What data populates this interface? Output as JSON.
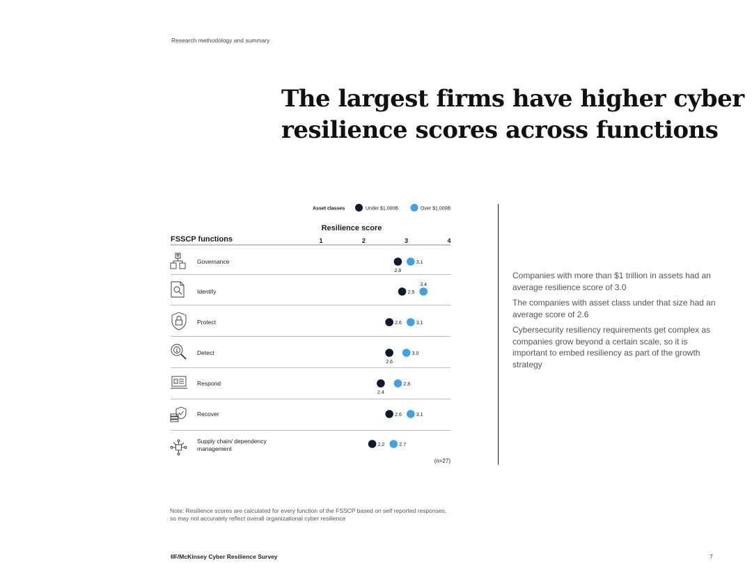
{
  "header": {
    "section_label": "Research methodology and summary"
  },
  "title": {
    "line1": "The largest firms have higher cyber",
    "line2": "resilience scores across functions"
  },
  "colors": {
    "under": "#0f1b2d",
    "over": "#3fa2e3",
    "rule": "#bdbdbd",
    "text": "#1a1a1a"
  },
  "chart_data": {
    "type": "scatter",
    "title": "Resilience score",
    "row_header": "FSSCP functions",
    "xlim": [
      1,
      4
    ],
    "x_ticks": [
      "1",
      "2",
      "3",
      "4"
    ],
    "legend": {
      "label": "Asset classes",
      "placement": "top"
    },
    "series": [
      {
        "name": "Under $1,000B",
        "color": "#0f1b2d",
        "values": [
          2.8,
          2.9,
          2.6,
          2.6,
          2.4,
          2.6,
          2.2
        ]
      },
      {
        "name": "Over $1,000B",
        "color": "#3fa2e3",
        "values": [
          3.1,
          3.4,
          3.1,
          3.0,
          2.8,
          3.1,
          2.7
        ]
      }
    ],
    "rows": [
      {
        "name": "Governance",
        "icon": "org-chart-icon",
        "labels": {
          "under": "2.8",
          "over": "3.1"
        }
      },
      {
        "name": "Identify",
        "icon": "document-search-icon",
        "labels": {
          "under": "2.9",
          "over": "3.4"
        }
      },
      {
        "name": "Protect",
        "icon": "shield-lock-icon",
        "labels": {
          "under": "2.6",
          "over": "3.1"
        }
      },
      {
        "name": "Detect",
        "icon": "magnifier-alert-icon",
        "labels": {
          "under": "2.6",
          "over": "3.0"
        }
      },
      {
        "name": "Respond",
        "icon": "laptop-checklist-icon",
        "labels": {
          "under": "2.4",
          "over": "2.8"
        }
      },
      {
        "name": "Recover",
        "icon": "database-shield-icon",
        "labels": {
          "under": "2.6",
          "over": "3.1"
        }
      },
      {
        "name": "Supply chain/ dependency management",
        "name_lines": [
          "Supply chain/ dependency",
          "management"
        ],
        "icon": "network-node-icon",
        "labels": {
          "under": "2.2",
          "over": "2.7"
        }
      }
    ],
    "sample_note": "(n=27)"
  },
  "side": {
    "p1": "Companies with more than $1 trillion in assets had an average resilience score of 3.0",
    "p2": "The companies with asset class under that size had an average score of 2.6",
    "p3": "Cybersecurity resiliency requirements get complex as companies grow beyond a certain scale, so it is important to embed resiliency as part of the growth strategy"
  },
  "note": {
    "line1": "Note: Resilience scores are calculated for every function of the FSSCP based on self reported responses,",
    "line2": "so may not accurately reflect overall organizational cyber resilience"
  },
  "footer": {
    "source": "IIF/McKinsey Cyber Resilience Survey",
    "page_number": "7"
  }
}
